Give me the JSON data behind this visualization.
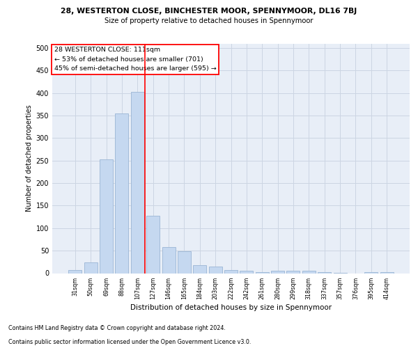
{
  "title_line1": "28, WESTERTON CLOSE, BINCHESTER MOOR, SPENNYMOOR, DL16 7BJ",
  "title_line2": "Size of property relative to detached houses in Spennymoor",
  "xlabel": "Distribution of detached houses by size in Spennymoor",
  "ylabel": "Number of detached properties",
  "categories": [
    "31sqm",
    "50sqm",
    "69sqm",
    "88sqm",
    "107sqm",
    "127sqm",
    "146sqm",
    "165sqm",
    "184sqm",
    "203sqm",
    "222sqm",
    "242sqm",
    "261sqm",
    "280sqm",
    "299sqm",
    "318sqm",
    "337sqm",
    "357sqm",
    "376sqm",
    "395sqm",
    "414sqm"
  ],
  "values": [
    7,
    24,
    252,
    354,
    403,
    128,
    58,
    49,
    18,
    14,
    7,
    5,
    2,
    6,
    6,
    5,
    3,
    1,
    0,
    2,
    2
  ],
  "bar_color": "#c5d8f0",
  "bar_edge_color": "#9ab5d5",
  "grid_color": "#ccd5e3",
  "plot_bg_color": "#e8eef7",
  "background_color": "#ffffff",
  "annot_line1": "28 WESTERTON CLOSE: 111sqm",
  "annot_line2": "← 53% of detached houses are smaller (701)",
  "annot_line3": "45% of semi-detached houses are larger (595) →",
  "red_line_index": 4,
  "footnote1": "Contains HM Land Registry data © Crown copyright and database right 2024.",
  "footnote2": "Contains public sector information licensed under the Open Government Licence v3.0.",
  "ylim": [
    0,
    510
  ],
  "yticks": [
    0,
    50,
    100,
    150,
    200,
    250,
    300,
    350,
    400,
    450,
    500
  ]
}
